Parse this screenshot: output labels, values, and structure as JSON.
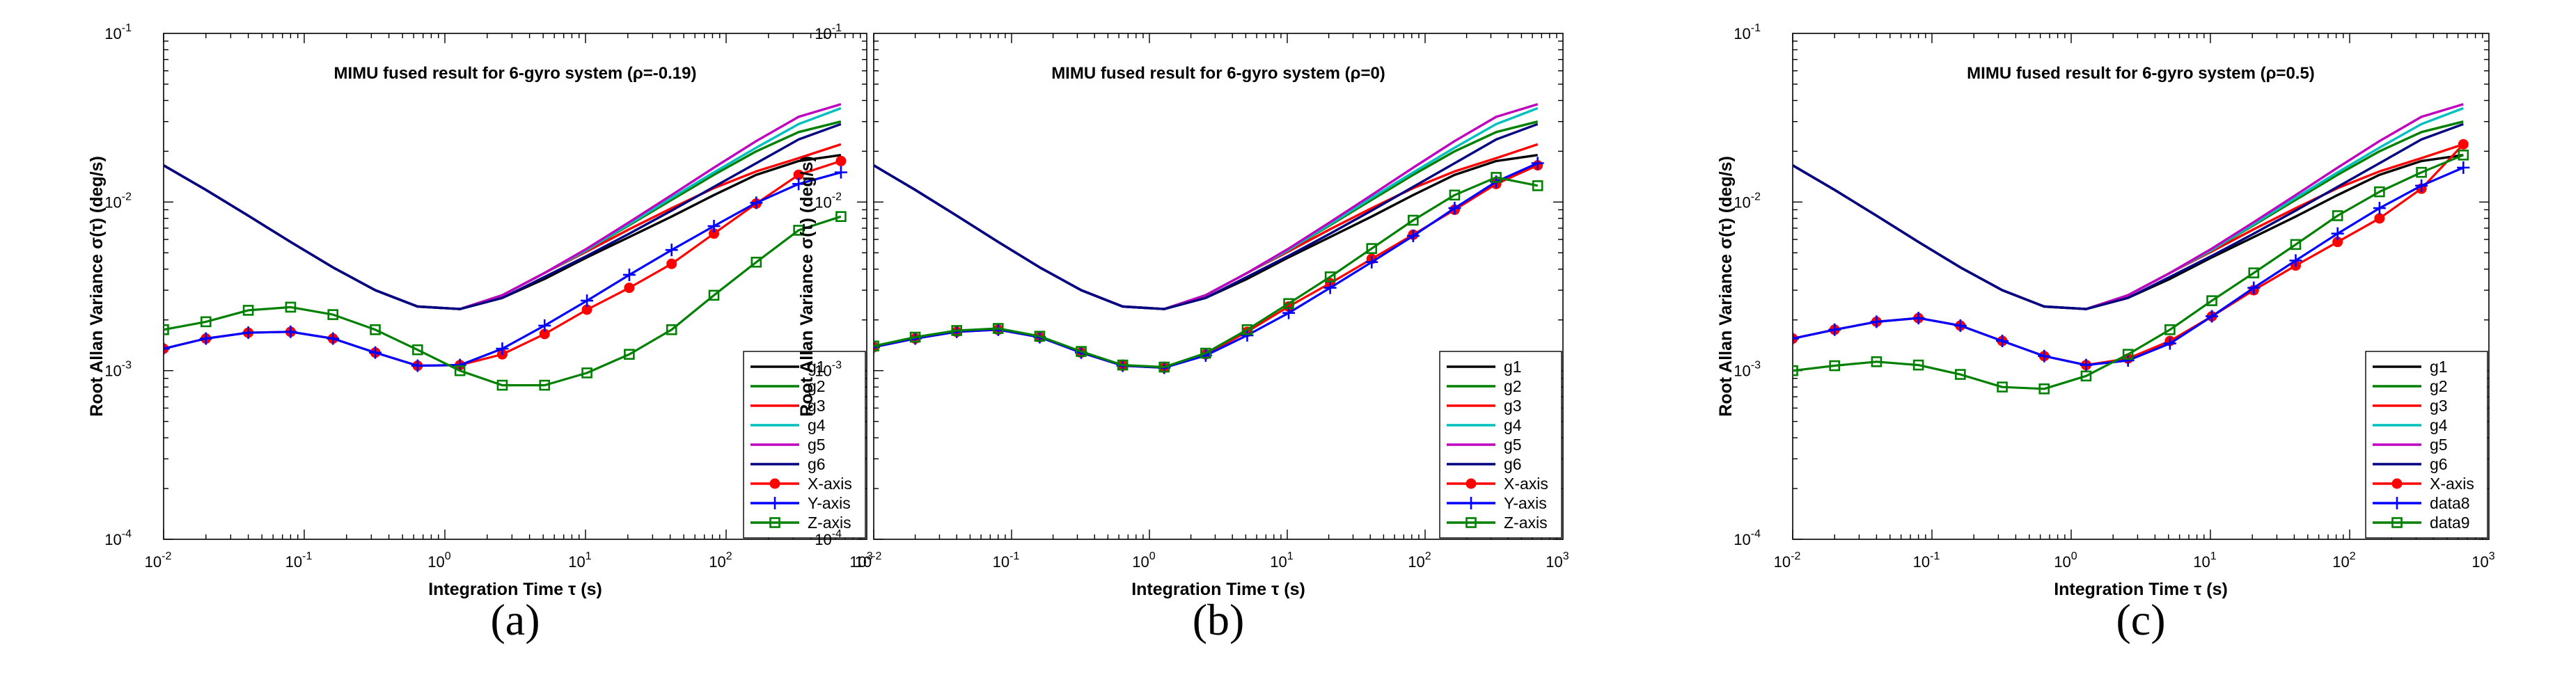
{
  "style": {
    "colors": {
      "g1": "#000000",
      "g2": "#008000",
      "g3": "#ff0000",
      "g4": "#00bfbf",
      "g5": "#bf00bf",
      "g6": "#000080",
      "fused_x": "#ff0000",
      "fused_y": "#0000ff",
      "fused_z": "#008000"
    }
  },
  "chart_data": [
    {
      "type": "line",
      "scale": "log-log",
      "panel_label": "(a)",
      "title": "MIMU fused result for 6-gyro system (ρ=-0.19)",
      "xlabel": "Integration Time τ (s)",
      "ylabel": "Root Allan Variance σ(τ) (deg/s)",
      "xlim": [
        0.01,
        1000
      ],
      "ylim": [
        0.0001,
        0.1
      ],
      "x_ticks": [
        {
          "value": 0.01,
          "base": "10",
          "exp": "-2"
        },
        {
          "value": 0.1,
          "base": "10",
          "exp": "-1"
        },
        {
          "value": 1,
          "base": "10",
          "exp": "0"
        },
        {
          "value": 10,
          "base": "10",
          "exp": "1"
        },
        {
          "value": 100,
          "base": "10",
          "exp": "2"
        },
        {
          "value": 1000,
          "base": "10",
          "exp": "3"
        }
      ],
      "y_ticks": [
        {
          "value": 0.0001,
          "base": "10",
          "exp": "-4"
        },
        {
          "value": 0.001,
          "base": "10",
          "exp": "-3"
        },
        {
          "value": 0.01,
          "base": "10",
          "exp": "-2"
        },
        {
          "value": 0.1,
          "base": "10",
          "exp": "-1"
        }
      ],
      "legend_position": "right",
      "x": [
        0.01,
        0.02,
        0.04,
        0.08,
        0.16,
        0.32,
        0.64,
        1.28,
        2.56,
        5.12,
        10.24,
        20.48,
        40.96,
        81.92,
        163.84,
        327.68,
        655.36
      ],
      "series": [
        {
          "name": "g1",
          "color_key": "g1",
          "marker": "none",
          "values": [
            0.0165,
            0.0118,
            0.0083,
            0.0058,
            0.0041,
            0.003,
            0.0024,
            0.00232,
            0.0027,
            0.0035,
            0.0047,
            0.0062,
            0.0082,
            0.011,
            0.0145,
            0.0175,
            0.019
          ]
        },
        {
          "name": "g2",
          "color_key": "g2",
          "marker": "none",
          "values": [
            0.0165,
            0.0118,
            0.0083,
            0.0058,
            0.0041,
            0.003,
            0.0024,
            0.00232,
            0.0028,
            0.0038,
            0.0052,
            0.0073,
            0.0103,
            0.0145,
            0.02,
            0.026,
            0.03
          ]
        },
        {
          "name": "g3",
          "color_key": "g3",
          "marker": "none",
          "values": [
            0.0165,
            0.0118,
            0.0083,
            0.0058,
            0.0041,
            0.003,
            0.0024,
            0.00232,
            0.0028,
            0.0038,
            0.0051,
            0.0069,
            0.0092,
            0.0121,
            0.0152,
            0.0182,
            0.022
          ]
        },
        {
          "name": "g4",
          "color_key": "g4",
          "marker": "none",
          "values": [
            0.0165,
            0.0118,
            0.0083,
            0.0058,
            0.0041,
            0.003,
            0.0024,
            0.00232,
            0.0028,
            0.0038,
            0.0052,
            0.0074,
            0.0106,
            0.015,
            0.021,
            0.029,
            0.036
          ]
        },
        {
          "name": "g5",
          "color_key": "g5",
          "marker": "none",
          "values": [
            0.0165,
            0.0118,
            0.0083,
            0.0058,
            0.0041,
            0.003,
            0.0024,
            0.00232,
            0.0028,
            0.0038,
            0.0053,
            0.0076,
            0.011,
            0.016,
            0.023,
            0.032,
            0.038
          ]
        },
        {
          "name": "g6",
          "color_key": "g6",
          "marker": "none",
          "values": [
            0.0165,
            0.0118,
            0.0083,
            0.0058,
            0.0041,
            0.003,
            0.0024,
            0.00232,
            0.0027,
            0.0036,
            0.0048,
            0.0065,
            0.0089,
            0.0123,
            0.017,
            0.0235,
            0.029
          ]
        },
        {
          "name": "X-axis",
          "color_key": "fused_x",
          "marker": "circle",
          "values": [
            0.00135,
            0.00155,
            0.00168,
            0.0017,
            0.00155,
            0.00128,
            0.00107,
            0.00108,
            0.00125,
            0.00165,
            0.0023,
            0.0031,
            0.0043,
            0.0065,
            0.0098,
            0.0145,
            0.0175
          ]
        },
        {
          "name": "Y-axis",
          "color_key": "fused_y",
          "marker": "plus",
          "values": [
            0.00135,
            0.00155,
            0.00168,
            0.0017,
            0.00155,
            0.00128,
            0.00107,
            0.00108,
            0.00135,
            0.00185,
            0.0026,
            0.0037,
            0.0052,
            0.0072,
            0.0099,
            0.0128,
            0.015
          ]
        },
        {
          "name": "Z-axis",
          "color_key": "fused_z",
          "marker": "square",
          "values": [
            0.00175,
            0.00195,
            0.00228,
            0.00238,
            0.00215,
            0.00175,
            0.00133,
            0.001,
            0.00082,
            0.00082,
            0.00097,
            0.00125,
            0.00175,
            0.0028,
            0.0044,
            0.0068,
            0.0082
          ]
        }
      ]
    },
    {
      "type": "line",
      "scale": "log-log",
      "panel_label": "(b)",
      "title": "MIMU fused result for 6-gyro system (ρ=0)",
      "xlabel": "Integration Time τ (s)",
      "ylabel": "Root Allan Variance σ(τ) (deg/s)",
      "xlim": [
        0.01,
        1000
      ],
      "ylim": [
        0.0001,
        0.1
      ],
      "x_ticks": [
        {
          "value": 0.01,
          "base": "10",
          "exp": "-2"
        },
        {
          "value": 0.1,
          "base": "10",
          "exp": "-1"
        },
        {
          "value": 1,
          "base": "10",
          "exp": "0"
        },
        {
          "value": 10,
          "base": "10",
          "exp": "1"
        },
        {
          "value": 100,
          "base": "10",
          "exp": "2"
        },
        {
          "value": 1000,
          "base": "10",
          "exp": "3"
        }
      ],
      "y_ticks": [
        {
          "value": 0.0001,
          "base": "10",
          "exp": "-4"
        },
        {
          "value": 0.001,
          "base": "10",
          "exp": "-3"
        },
        {
          "value": 0.01,
          "base": "10",
          "exp": "-2"
        },
        {
          "value": 0.1,
          "base": "10",
          "exp": "-1"
        }
      ],
      "legend_position": "right",
      "x": [
        0.01,
        0.02,
        0.04,
        0.08,
        0.16,
        0.32,
        0.64,
        1.28,
        2.56,
        5.12,
        10.24,
        20.48,
        40.96,
        81.92,
        163.84,
        327.68,
        655.36
      ],
      "series": [
        {
          "name": "g1",
          "color_key": "g1",
          "marker": "none",
          "values": [
            0.0165,
            0.0118,
            0.0083,
            0.0058,
            0.0041,
            0.003,
            0.0024,
            0.00232,
            0.0027,
            0.0035,
            0.0047,
            0.0062,
            0.0082,
            0.011,
            0.0145,
            0.0175,
            0.019
          ]
        },
        {
          "name": "g2",
          "color_key": "g2",
          "marker": "none",
          "values": [
            0.0165,
            0.0118,
            0.0083,
            0.0058,
            0.0041,
            0.003,
            0.0024,
            0.00232,
            0.0028,
            0.0038,
            0.0052,
            0.0073,
            0.0103,
            0.0145,
            0.02,
            0.026,
            0.03
          ]
        },
        {
          "name": "g3",
          "color_key": "g3",
          "marker": "none",
          "values": [
            0.0165,
            0.0118,
            0.0083,
            0.0058,
            0.0041,
            0.003,
            0.0024,
            0.00232,
            0.0028,
            0.0038,
            0.0051,
            0.0069,
            0.0092,
            0.0121,
            0.0152,
            0.0182,
            0.022
          ]
        },
        {
          "name": "g4",
          "color_key": "g4",
          "marker": "none",
          "values": [
            0.0165,
            0.0118,
            0.0083,
            0.0058,
            0.0041,
            0.003,
            0.0024,
            0.00232,
            0.0028,
            0.0038,
            0.0052,
            0.0074,
            0.0106,
            0.015,
            0.021,
            0.029,
            0.036
          ]
        },
        {
          "name": "g5",
          "color_key": "g5",
          "marker": "none",
          "values": [
            0.0165,
            0.0118,
            0.0083,
            0.0058,
            0.0041,
            0.003,
            0.0024,
            0.00232,
            0.0028,
            0.0038,
            0.0053,
            0.0076,
            0.011,
            0.016,
            0.023,
            0.032,
            0.038
          ]
        },
        {
          "name": "g6",
          "color_key": "g6",
          "marker": "none",
          "values": [
            0.0165,
            0.0118,
            0.0083,
            0.0058,
            0.0041,
            0.003,
            0.0024,
            0.00232,
            0.0027,
            0.0036,
            0.0048,
            0.0065,
            0.0089,
            0.0123,
            0.017,
            0.0235,
            0.029
          ]
        },
        {
          "name": "X-axis",
          "color_key": "fused_x",
          "marker": "circle",
          "values": [
            0.00138,
            0.00155,
            0.0017,
            0.00175,
            0.00158,
            0.00128,
            0.00107,
            0.00104,
            0.00125,
            0.0017,
            0.0024,
            0.0033,
            0.0046,
            0.0064,
            0.009,
            0.0128,
            0.0165
          ]
        },
        {
          "name": "Y-axis",
          "color_key": "fused_y",
          "marker": "plus",
          "values": [
            0.00138,
            0.00155,
            0.0017,
            0.00175,
            0.00158,
            0.00128,
            0.00107,
            0.00104,
            0.00123,
            0.00162,
            0.0022,
            0.0031,
            0.0044,
            0.0063,
            0.0092,
            0.0132,
            0.017
          ]
        },
        {
          "name": "Z-axis",
          "color_key": "fused_z",
          "marker": "square",
          "values": [
            0.0014,
            0.00158,
            0.00173,
            0.00178,
            0.0016,
            0.0013,
            0.00108,
            0.00105,
            0.00127,
            0.00175,
            0.0025,
            0.0036,
            0.0053,
            0.0078,
            0.011,
            0.014,
            0.0125
          ]
        }
      ]
    },
    {
      "type": "line",
      "scale": "log-log",
      "panel_label": "(c)",
      "title": "MIMU fused result for 6-gyro system (ρ=0.5)",
      "xlabel": "Integration Time τ (s)",
      "ylabel": "Root Allan Variance σ(τ) (deg/s)",
      "xlim": [
        0.01,
        1000
      ],
      "ylim": [
        0.0001,
        0.1
      ],
      "x_ticks": [
        {
          "value": 0.01,
          "base": "10",
          "exp": "-2"
        },
        {
          "value": 0.1,
          "base": "10",
          "exp": "-1"
        },
        {
          "value": 1,
          "base": "10",
          "exp": "0"
        },
        {
          "value": 10,
          "base": "10",
          "exp": "1"
        },
        {
          "value": 100,
          "base": "10",
          "exp": "2"
        },
        {
          "value": 1000,
          "base": "10",
          "exp": "3"
        }
      ],
      "y_ticks": [
        {
          "value": 0.0001,
          "base": "10",
          "exp": "-4"
        },
        {
          "value": 0.001,
          "base": "10",
          "exp": "-3"
        },
        {
          "value": 0.01,
          "base": "10",
          "exp": "-2"
        },
        {
          "value": 0.1,
          "base": "10",
          "exp": "-1"
        }
      ],
      "legend_position": "right",
      "x": [
        0.01,
        0.02,
        0.04,
        0.08,
        0.16,
        0.32,
        0.64,
        1.28,
        2.56,
        5.12,
        10.24,
        20.48,
        40.96,
        81.92,
        163.84,
        327.68,
        655.36
      ],
      "series": [
        {
          "name": "g1",
          "color_key": "g1",
          "marker": "none",
          "values": [
            0.0165,
            0.0118,
            0.0083,
            0.0058,
            0.0041,
            0.003,
            0.0024,
            0.00232,
            0.0027,
            0.0035,
            0.0047,
            0.0062,
            0.0082,
            0.011,
            0.0145,
            0.0175,
            0.019
          ]
        },
        {
          "name": "g2",
          "color_key": "g2",
          "marker": "none",
          "values": [
            0.0165,
            0.0118,
            0.0083,
            0.0058,
            0.0041,
            0.003,
            0.0024,
            0.00232,
            0.0028,
            0.0038,
            0.0052,
            0.0073,
            0.0103,
            0.0145,
            0.02,
            0.026,
            0.03
          ]
        },
        {
          "name": "g3",
          "color_key": "g3",
          "marker": "none",
          "values": [
            0.0165,
            0.0118,
            0.0083,
            0.0058,
            0.0041,
            0.003,
            0.0024,
            0.00232,
            0.0028,
            0.0038,
            0.0051,
            0.0069,
            0.0092,
            0.0121,
            0.0152,
            0.0182,
            0.022
          ]
        },
        {
          "name": "g4",
          "color_key": "g4",
          "marker": "none",
          "values": [
            0.0165,
            0.0118,
            0.0083,
            0.0058,
            0.0041,
            0.003,
            0.0024,
            0.00232,
            0.0028,
            0.0038,
            0.0052,
            0.0074,
            0.0106,
            0.015,
            0.021,
            0.029,
            0.036
          ]
        },
        {
          "name": "g5",
          "color_key": "g5",
          "marker": "none",
          "values": [
            0.0165,
            0.0118,
            0.0083,
            0.0058,
            0.0041,
            0.003,
            0.0024,
            0.00232,
            0.0028,
            0.0038,
            0.0053,
            0.0076,
            0.011,
            0.016,
            0.023,
            0.032,
            0.038
          ]
        },
        {
          "name": "g6",
          "color_key": "g6",
          "marker": "none",
          "values": [
            0.0165,
            0.0118,
            0.0083,
            0.0058,
            0.0041,
            0.003,
            0.0024,
            0.00232,
            0.0027,
            0.0036,
            0.0048,
            0.0065,
            0.0089,
            0.0123,
            0.017,
            0.0235,
            0.029
          ]
        },
        {
          "name": "X-axis",
          "color_key": "fused_x",
          "marker": "circle",
          "values": [
            0.00155,
            0.00175,
            0.00195,
            0.00205,
            0.00185,
            0.0015,
            0.00122,
            0.00108,
            0.00118,
            0.0015,
            0.0021,
            0.003,
            0.0042,
            0.0058,
            0.008,
            0.012,
            0.022
          ]
        },
        {
          "name": "data8",
          "color_key": "fused_y",
          "marker": "plus",
          "values": [
            0.00155,
            0.00175,
            0.00195,
            0.00205,
            0.00185,
            0.0015,
            0.00122,
            0.00108,
            0.00115,
            0.00145,
            0.0021,
            0.0031,
            0.0045,
            0.0065,
            0.0092,
            0.0125,
            0.016
          ]
        },
        {
          "name": "data9",
          "color_key": "fused_z",
          "marker": "square",
          "values": [
            0.001,
            0.00107,
            0.00113,
            0.00108,
            0.00095,
            0.0008,
            0.00078,
            0.00093,
            0.00125,
            0.00175,
            0.0026,
            0.0038,
            0.0056,
            0.0083,
            0.0115,
            0.015,
            0.019
          ]
        }
      ]
    }
  ]
}
